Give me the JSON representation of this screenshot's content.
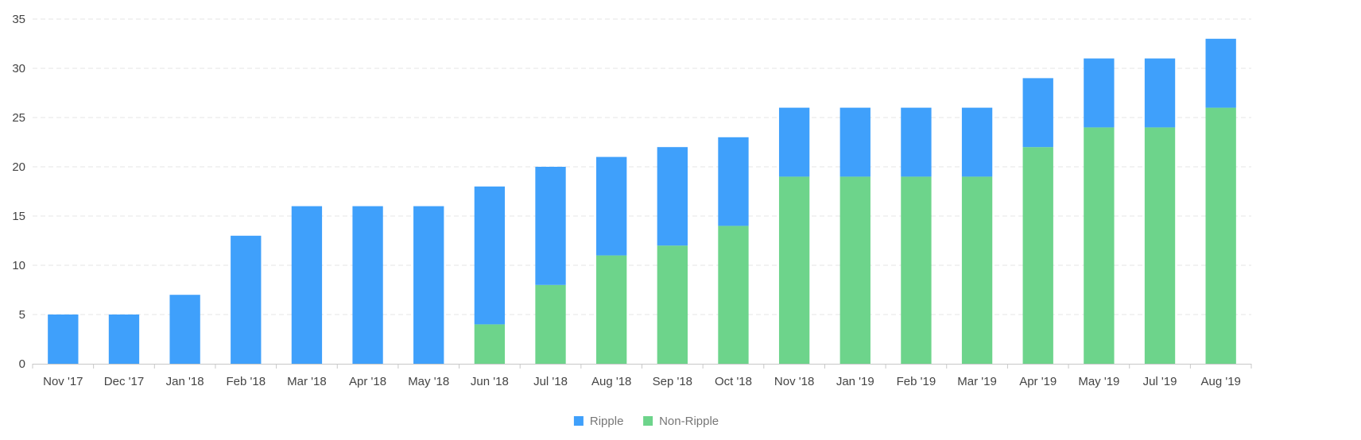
{
  "chart_data": {
    "type": "bar",
    "stacked": true,
    "title": "",
    "xlabel": "",
    "ylabel": "",
    "ylim": [
      0,
      35
    ],
    "yticks": [
      0,
      5,
      10,
      15,
      20,
      25,
      30,
      35
    ],
    "grid": true,
    "legend_position": "bottom-center",
    "categories": [
      "Nov '17",
      "Dec '17",
      "Jan '18",
      "Feb '18",
      "Mar '18",
      "Apr '18",
      "May '18",
      "Jun '18",
      "Jul '18",
      "Aug '18",
      "Sep '18",
      "Oct '18",
      "Nov '18",
      "Jan '19",
      "Feb '19",
      "Mar '19",
      "Apr '19",
      "May '19",
      "Jul '19",
      "Aug '19"
    ],
    "series": [
      {
        "name": "Non-Ripple",
        "color": "#6dd48b",
        "values": [
          0,
          0,
          0,
          0,
          0,
          0,
          0,
          4,
          8,
          11,
          12,
          14,
          19,
          19,
          19,
          19,
          22,
          24,
          24,
          26
        ]
      },
      {
        "name": "Ripple",
        "color": "#3fa0fb",
        "values": [
          5,
          5,
          7,
          13,
          16,
          16,
          16,
          14,
          12,
          10,
          10,
          9,
          7,
          7,
          7,
          7,
          7,
          7,
          7,
          7
        ]
      }
    ],
    "legend": [
      {
        "name": "Ripple",
        "color": "#3fa0fb"
      },
      {
        "name": "Non-Ripple",
        "color": "#6dd48b"
      }
    ]
  }
}
